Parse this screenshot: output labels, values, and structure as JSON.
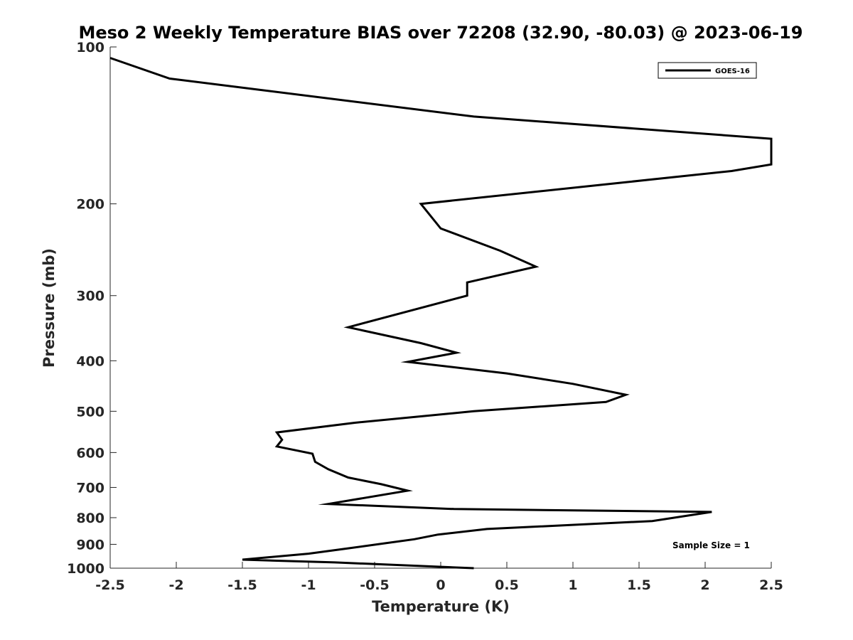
{
  "chart_data": {
    "type": "line",
    "title": "Meso 2 Weekly Temperature BIAS over 72208 (32.90, -80.03) @ 2023-06-19",
    "xlabel": "Temperature (K)",
    "ylabel": "Pressure (mb)",
    "xlim": [
      -2.5,
      2.5
    ],
    "ylim": [
      100,
      1000
    ],
    "y_scale": "log",
    "y_reversed": true,
    "x_ticks": [
      -2.5,
      -2,
      -1.5,
      -1,
      -0.5,
      0,
      0.5,
      1,
      1.5,
      2,
      2.5
    ],
    "x_tick_labels": [
      "-2.5",
      "-2",
      "-1.5",
      "-1",
      "-0.5",
      "0",
      "0.5",
      "1",
      "1.5",
      "2",
      "2.5"
    ],
    "y_ticks": [
      100,
      200,
      300,
      400,
      500,
      600,
      700,
      800,
      900,
      1000
    ],
    "y_tick_labels": [
      "100",
      "200",
      "300",
      "400",
      "500",
      "600",
      "700",
      "800",
      "900",
      "1000"
    ],
    "grid": false,
    "legend_position": "top-right",
    "color": "#000000",
    "series": [
      {
        "name": "GOES-16",
        "points": [
          {
            "x": 0.25,
            "y": 1000
          },
          {
            "x": -0.8,
            "y": 975
          },
          {
            "x": -1.5,
            "y": 963
          },
          {
            "x": -1.0,
            "y": 938
          },
          {
            "x": -0.7,
            "y": 916
          },
          {
            "x": -0.2,
            "y": 880
          },
          {
            "x": -0.02,
            "y": 862
          },
          {
            "x": 0.35,
            "y": 841
          },
          {
            "x": 1.6,
            "y": 812
          },
          {
            "x": 2.05,
            "y": 780
          },
          {
            "x": 0.1,
            "y": 770
          },
          {
            "x": -0.85,
            "y": 753
          },
          {
            "x": -0.25,
            "y": 710
          },
          {
            "x": -0.45,
            "y": 690
          },
          {
            "x": -0.7,
            "y": 670
          },
          {
            "x": -0.85,
            "y": 646
          },
          {
            "x": -0.95,
            "y": 625
          },
          {
            "x": -0.97,
            "y": 603
          },
          {
            "x": -1.24,
            "y": 584
          },
          {
            "x": -1.2,
            "y": 567
          },
          {
            "x": -1.24,
            "y": 549
          },
          {
            "x": -0.65,
            "y": 526
          },
          {
            "x": 0.25,
            "y": 500
          },
          {
            "x": 1.25,
            "y": 480
          },
          {
            "x": 1.4,
            "y": 465
          },
          {
            "x": 1.0,
            "y": 443
          },
          {
            "x": 0.5,
            "y": 423
          },
          {
            "x": -0.25,
            "y": 402
          },
          {
            "x": 0.12,
            "y": 386
          },
          {
            "x": -0.15,
            "y": 370
          },
          {
            "x": -0.7,
            "y": 345
          },
          {
            "x": 0.2,
            "y": 300
          },
          {
            "x": 0.2,
            "y": 283
          },
          {
            "x": 0.72,
            "y": 264
          },
          {
            "x": 0.45,
            "y": 246
          },
          {
            "x": 0.0,
            "y": 223
          },
          {
            "x": -0.15,
            "y": 200
          },
          {
            "x": 2.2,
            "y": 173
          },
          {
            "x": 2.5,
            "y": 168
          },
          {
            "x": 2.5,
            "y": 150
          },
          {
            "x": 0.25,
            "y": 136
          },
          {
            "x": -2.05,
            "y": 115
          },
          {
            "x": -2.5,
            "y": 105
          }
        ]
      }
    ],
    "annotation": "Sample Size = 1"
  }
}
